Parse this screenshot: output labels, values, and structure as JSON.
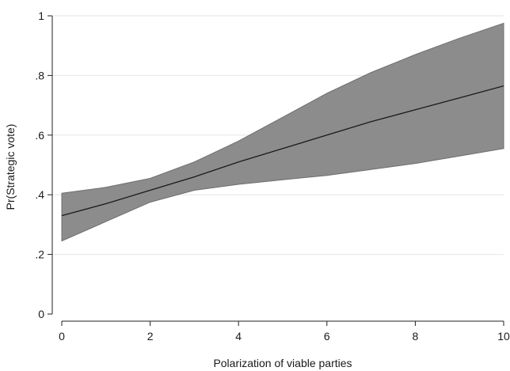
{
  "chart_data": {
    "type": "line",
    "title": "",
    "xlabel": "Polarization of viable parties",
    "ylabel": "Pr(Strategic vote)",
    "xlim": [
      0,
      10
    ],
    "ylim": [
      0,
      1
    ],
    "xticks": [
      0,
      2,
      4,
      6,
      8,
      10
    ],
    "yticks": [
      0,
      0.2,
      0.4,
      0.6,
      0.8,
      1
    ],
    "xtick_labels": [
      "0",
      "2",
      "4",
      "6",
      "8",
      "10"
    ],
    "ytick_labels": [
      "0",
      ".2",
      ".4",
      ".6",
      ".8",
      "1"
    ],
    "grid": "horizontal",
    "x": [
      0,
      1,
      2,
      3,
      4,
      5,
      6,
      7,
      8,
      9,
      10
    ],
    "series": [
      {
        "values": [
          0.33,
          0.37,
          0.415,
          0.46,
          0.51,
          0.555,
          0.6,
          0.645,
          0.685,
          0.725,
          0.765
        ]
      }
    ],
    "confidence_band": {
      "lower": [
        0.245,
        0.31,
        0.375,
        0.415,
        0.435,
        0.45,
        0.465,
        0.485,
        0.505,
        0.53,
        0.555
      ],
      "upper": [
        0.405,
        0.425,
        0.455,
        0.51,
        0.58,
        0.66,
        0.74,
        0.81,
        0.87,
        0.925,
        0.975
      ]
    },
    "colors": {
      "band": "#8c8c8c",
      "line": "#1a1a1a",
      "grid": "#e6e6e6"
    }
  }
}
